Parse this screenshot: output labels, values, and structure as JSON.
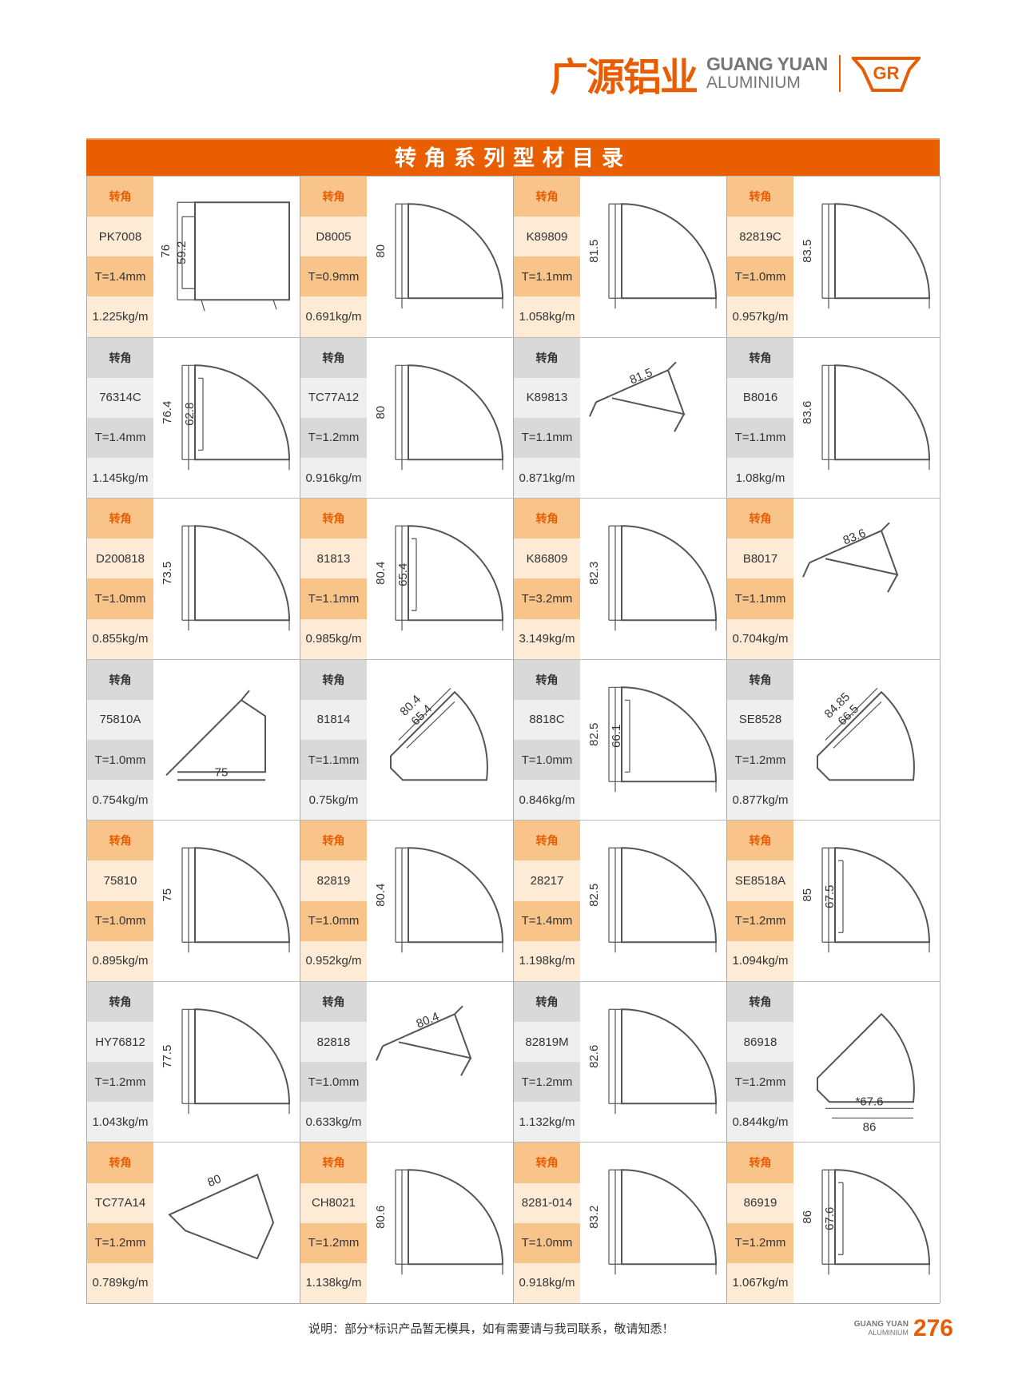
{
  "brand": {
    "cn": "广源铝业",
    "en_line1": "GUANG YUAN",
    "en_line2": "ALUMINIUM",
    "mark": "GR"
  },
  "title": "转角系列型材目录",
  "colors": {
    "accent": "#e95f00",
    "orange_light": "#fdebd6",
    "orange_mid": "#f9c48a",
    "gray_mid": "#d9d9d9",
    "gray_light": "#efefef"
  },
  "category_label": "转角",
  "rows": [
    [
      {
        "code": "PK7008",
        "t": "T=1.4mm",
        "w": "1.225kg/m",
        "shape": "square",
        "dims": [
          "76",
          "59.2"
        ]
      },
      {
        "code": "D8005",
        "t": "T=0.9mm",
        "w": "0.691kg/m",
        "shape": "quarter",
        "dims": [
          "80"
        ]
      },
      {
        "code": "K89809",
        "t": "T=1.1mm",
        "w": "1.058kg/m",
        "shape": "quarter",
        "dims": [
          "81.5"
        ]
      },
      {
        "code": "82819C",
        "t": "T=1.0mm",
        "w": "0.957kg/m",
        "shape": "quarter",
        "dims": [
          "83.5"
        ]
      }
    ],
    [
      {
        "code": "76314C",
        "t": "T=1.4mm",
        "w": "1.145kg/m",
        "shape": "quarter",
        "dims": [
          "76.4",
          "62.8"
        ]
      },
      {
        "code": "TC77A12",
        "t": "T=1.2mm",
        "w": "0.916kg/m",
        "shape": "quarter",
        "dims": [
          "80"
        ]
      },
      {
        "code": "K89813",
        "t": "T=1.1mm",
        "w": "0.871kg/m",
        "shape": "diag",
        "dims": [
          "81.5"
        ]
      },
      {
        "code": "B8016",
        "t": "T=1.1mm",
        "w": "1.08kg/m",
        "shape": "quarter",
        "dims": [
          "83.6"
        ]
      }
    ],
    [
      {
        "code": "D200818",
        "t": "T=1.0mm",
        "w": "0.855kg/m",
        "shape": "quarter",
        "dims": [
          "73.5"
        ]
      },
      {
        "code": "81813",
        "t": "T=1.1mm",
        "w": "0.985kg/m",
        "shape": "quarter",
        "dims": [
          "80.4",
          "65.4"
        ]
      },
      {
        "code": "K86809",
        "t": "T=3.2mm",
        "w": "3.149kg/m",
        "shape": "quarter",
        "dims": [
          "82.3"
        ]
      },
      {
        "code": "B8017",
        "t": "T=1.1mm",
        "w": "0.704kg/m",
        "shape": "diag",
        "dims": [
          "83.6"
        ]
      }
    ],
    [
      {
        "code": "75810A",
        "t": "T=1.0mm",
        "w": "0.754kg/m",
        "shape": "tri",
        "dims": [
          "75"
        ]
      },
      {
        "code": "81814",
        "t": "T=1.1mm",
        "w": "0.75kg/m",
        "shape": "fan",
        "dims": [
          "80.4",
          "65.4"
        ]
      },
      {
        "code": "8818C",
        "t": "T=1.0mm",
        "w": "0.846kg/m",
        "shape": "quarter",
        "dims": [
          "82.5",
          "66.1"
        ]
      },
      {
        "code": "SE8528",
        "t": "T=1.2mm",
        "w": "0.877kg/m",
        "shape": "fan",
        "dims": [
          "84.85",
          "66.5"
        ]
      }
    ],
    [
      {
        "code": "75810",
        "t": "T=1.0mm",
        "w": "0.895kg/m",
        "shape": "quarter",
        "dims": [
          "75"
        ]
      },
      {
        "code": "82819",
        "t": "T=1.0mm",
        "w": "0.952kg/m",
        "shape": "quarter",
        "dims": [
          "80.4"
        ]
      },
      {
        "code": "28217",
        "t": "T=1.4mm",
        "w": "1.198kg/m",
        "shape": "quarter",
        "dims": [
          "82.5"
        ]
      },
      {
        "code": "SE8518A",
        "t": "T=1.2mm",
        "w": "1.094kg/m",
        "shape": "quarter",
        "dims": [
          "85",
          "67.5"
        ]
      }
    ],
    [
      {
        "code": "HY76812",
        "t": "T=1.2mm",
        "w": "1.043kg/m",
        "shape": "quarter",
        "dims": [
          "77.5"
        ]
      },
      {
        "code": "82818",
        "t": "T=1.0mm",
        "w": "0.633kg/m",
        "shape": "diag",
        "dims": [
          "80.4"
        ]
      },
      {
        "code": "82819M",
        "t": "T=1.2mm",
        "w": "1.132kg/m",
        "shape": "quarter",
        "dims": [
          "82.6"
        ]
      },
      {
        "code": "86918",
        "t": "T=1.2mm",
        "w": "0.844kg/m",
        "shape": "fanh",
        "dims": [
          "*67.6",
          "86"
        ]
      }
    ],
    [
      {
        "code": "TC77A14",
        "t": "T=1.2mm",
        "w": "0.789kg/m",
        "shape": "diag2",
        "dims": [
          "80"
        ]
      },
      {
        "code": "CH8021",
        "t": "T=1.2mm",
        "w": "1.138kg/m",
        "shape": "quarter",
        "dims": [
          "80.6"
        ]
      },
      {
        "code": "8281-014",
        "t": "T=1.0mm",
        "w": "0.918kg/m",
        "shape": "quarter",
        "dims": [
          "83.2"
        ]
      },
      {
        "code": "86919",
        "t": "T=1.2mm",
        "w": "1.067kg/m",
        "shape": "quarter",
        "dims": [
          "86",
          "67.6"
        ]
      }
    ]
  ],
  "footer": {
    "note": "说明：部分*标识产品暂无模具，如有需要请与我司联系，敬请知悉！",
    "brand_line1": "GUANG YUAN",
    "brand_line2": "ALUMINIUM",
    "page_number": "276"
  }
}
